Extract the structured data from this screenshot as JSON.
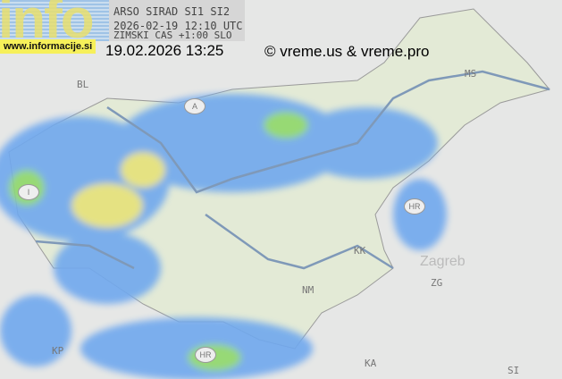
{
  "map": {
    "logo": {
      "text": "info",
      "site": "www.informacije.si"
    },
    "radar_info": {
      "line1": "ARSO SIRAD SI1 SI2",
      "line2": "2026-02-19 12:10 UTC",
      "line3": "ZIMSKI CAS +1:00 SLO"
    },
    "timestamp": "19.02.2026 13:25",
    "copyright": "© vreme.us & vreme.pro",
    "country_labels": [
      "BL",
      "A",
      "I",
      "HR",
      "HR"
    ],
    "city_labels": [
      "Zagreb",
      "ZG",
      "KA",
      "SI",
      "NM",
      "KK",
      "MS",
      "KP"
    ],
    "colors": {
      "land": "#e3ead6",
      "outside": "#e6e7e6",
      "radar_light": "#6fa8ee",
      "radar_mid": "#4a7de0",
      "radar_heavy": "#8fd86a",
      "radar_yellow": "#e6e27a"
    }
  }
}
